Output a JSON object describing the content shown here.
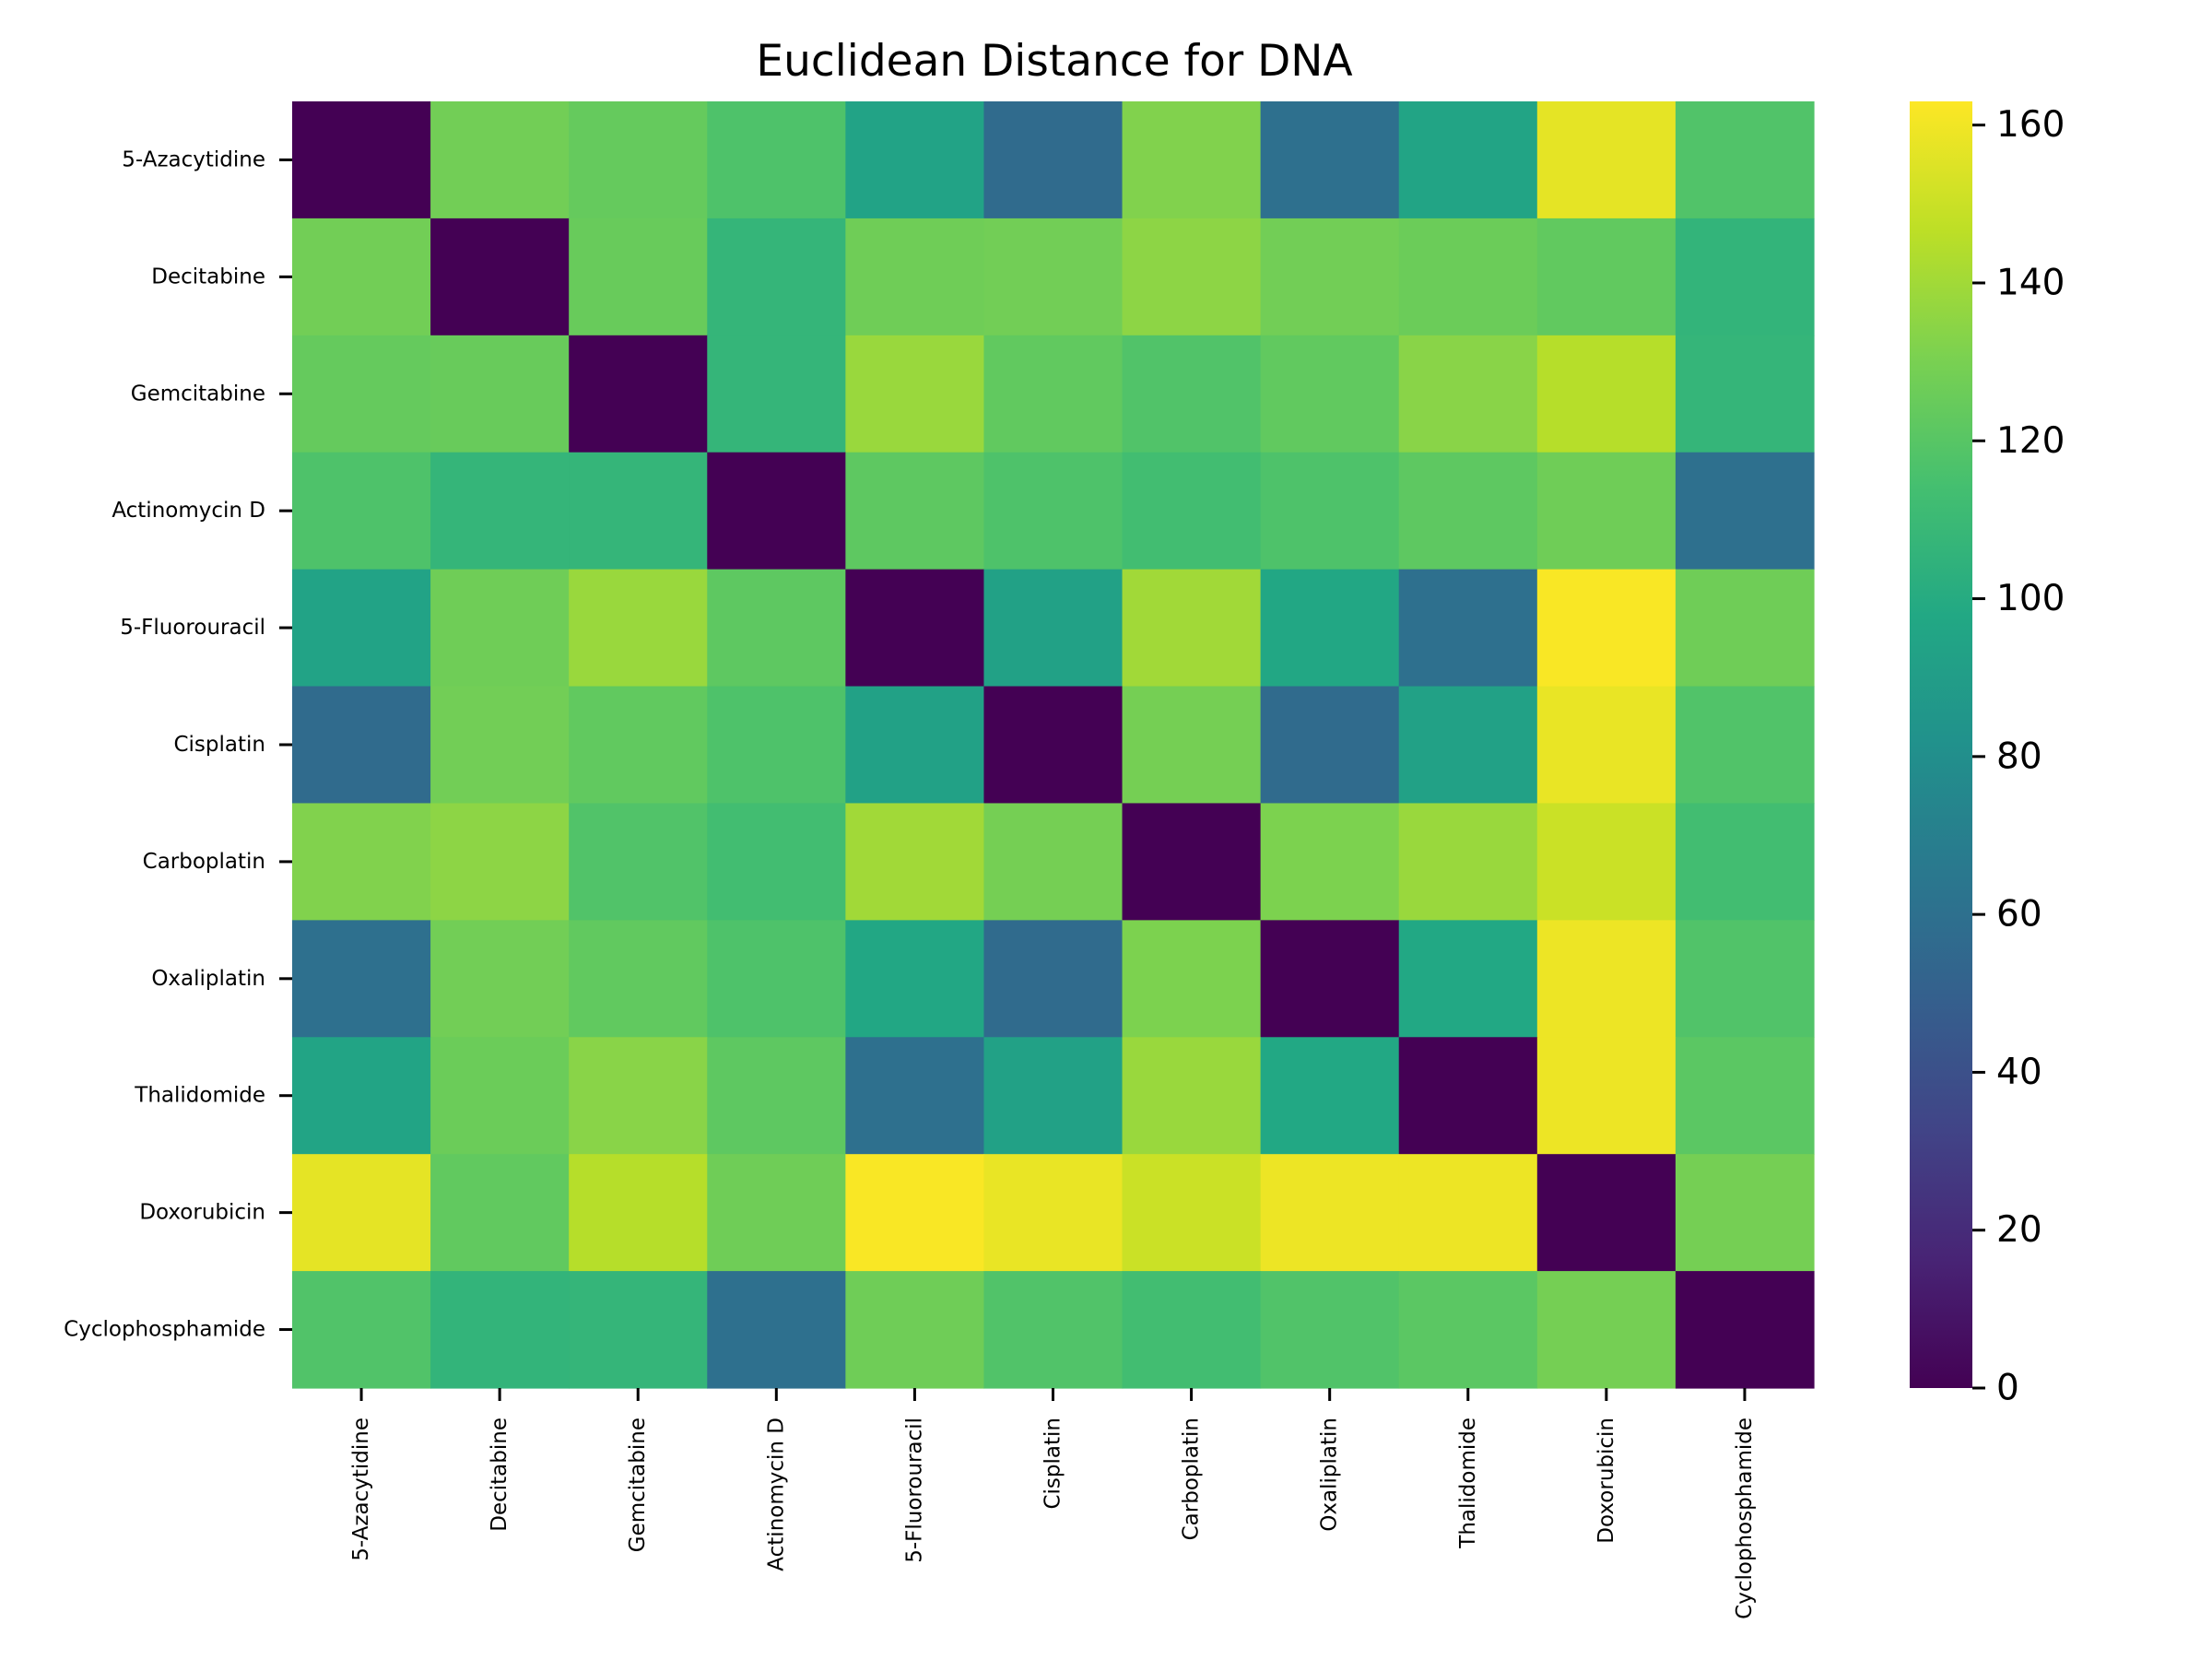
{
  "chart_data": {
    "type": "heatmap",
    "title": "Euclidean Distance for DNA",
    "xlabel": "",
    "ylabel": "",
    "colormap": "viridis",
    "x_categories": [
      "5-Azacytidine",
      "Decitabine",
      "Gemcitabine",
      "Actinomycin D",
      "5-Fluorouracil",
      "Cisplatin",
      "Carboplatin",
      "Oxaliplatin",
      "Thalidomide",
      "Doxorubicin",
      "Cyclophosphamide"
    ],
    "y_categories": [
      "5-Azacytidine",
      "Decitabine",
      "Gemcitabine",
      "Actinomycin D",
      "5-Fluorouracil",
      "Cisplatin",
      "Carboplatin",
      "Oxaliplatin",
      "Thalidomide",
      "Doxorubicin",
      "Cyclophosphamide"
    ],
    "values": [
      [
        0,
        128,
        124,
        117,
        94,
        57,
        132,
        60,
        95,
        157,
        118
      ],
      [
        128,
        0,
        125,
        107,
        127,
        128,
        135,
        128,
        126,
        123,
        106
      ],
      [
        124,
        125,
        0,
        107,
        138,
        123,
        118,
        123,
        134,
        145,
        107
      ],
      [
        117,
        107,
        107,
        0,
        122,
        117,
        113,
        117,
        122,
        127,
        60
      ],
      [
        94,
        127,
        138,
        122,
        0,
        93,
        140,
        97,
        60,
        162,
        127
      ],
      [
        57,
        128,
        123,
        117,
        93,
        0,
        129,
        57,
        93,
        158,
        118
      ],
      [
        132,
        135,
        118,
        113,
        140,
        129,
        0,
        131,
        138,
        150,
        113
      ],
      [
        60,
        128,
        123,
        117,
        97,
        57,
        131,
        0,
        98,
        159,
        118
      ],
      [
        95,
        126,
        134,
        122,
        60,
        93,
        138,
        98,
        0,
        159,
        121
      ],
      [
        157,
        123,
        145,
        127,
        162,
        158,
        150,
        159,
        159,
        0,
        129
      ],
      [
        118,
        106,
        107,
        60,
        127,
        118,
        113,
        118,
        121,
        129,
        0
      ]
    ],
    "colorbar": {
      "min": 0,
      "max": 163,
      "ticks": [
        "0",
        "20",
        "40",
        "60",
        "80",
        "100",
        "120",
        "140",
        "160"
      ]
    },
    "grid": false,
    "legend": "colorbar-right"
  }
}
